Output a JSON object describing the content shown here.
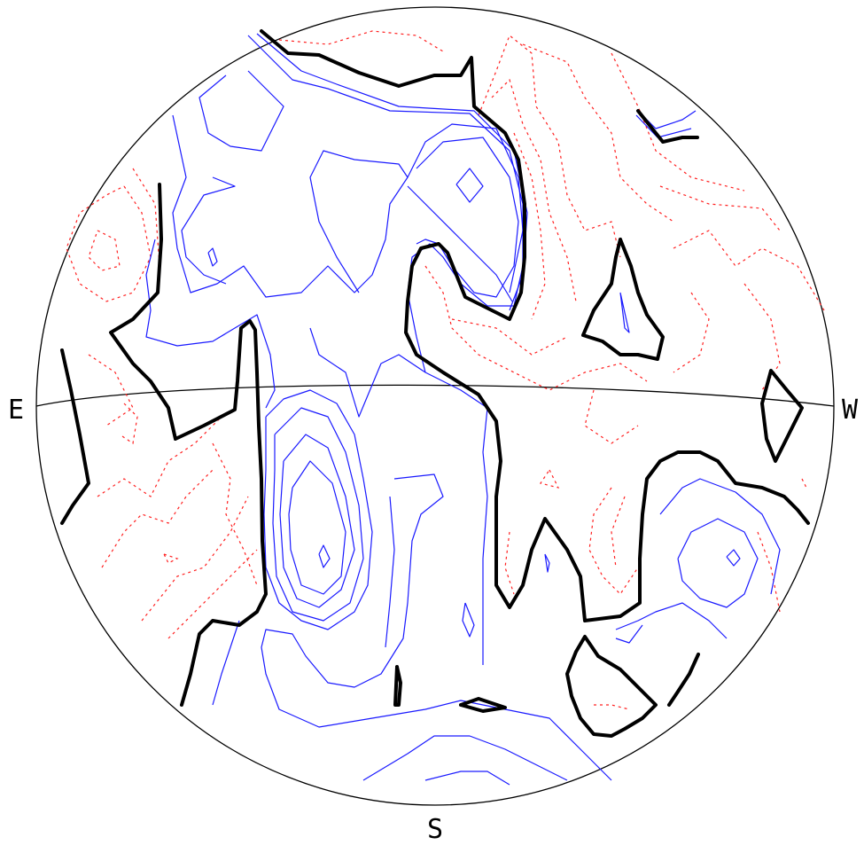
{
  "labels": {
    "east": "E",
    "west": "W",
    "south": "S"
  },
  "colors": {
    "zero_contour": "#000000",
    "positive_contour": "#1a1aff",
    "negative_contour": "#ff2020"
  }
}
